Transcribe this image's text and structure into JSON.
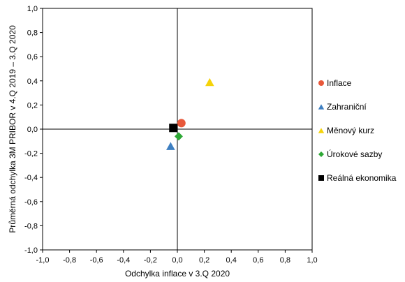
{
  "chart_data": {
    "type": "scatter",
    "title": "",
    "xlabel": "Odchylka inflace v 3.Q 2020",
    "ylabel": "Průměrná odchylka 3M PRIBOR v 4.Q 2019 – 3.Q 2020",
    "xlim": [
      -1.0,
      1.0
    ],
    "ylim": [
      -1.0,
      1.0
    ],
    "x_ticks": [
      "-1,0",
      "-0,8",
      "-0,6",
      "-0,4",
      "-0,2",
      "0,0",
      "0,2",
      "0,4",
      "0,6",
      "0,8",
      "1,0"
    ],
    "y_ticks": [
      "1,0",
      "0,8",
      "0,6",
      "0,4",
      "0,2",
      "0,0",
      "-0,2",
      "-0,4",
      "-0,6",
      "-0,8",
      "-1,0"
    ],
    "grid": false,
    "legend_position": "right",
    "series": [
      {
        "name": "Inflace",
        "marker": "circle",
        "color": "#E8583A",
        "x": 0.03,
        "y": 0.05
      },
      {
        "name": "Zahraniční",
        "marker": "triangle",
        "color": "#3E7FC1",
        "x": -0.05,
        "y": -0.14
      },
      {
        "name": "Měnový kurz",
        "marker": "triangle",
        "color": "#F5D30A",
        "x": 0.24,
        "y": 0.39
      },
      {
        "name": "Úrokové sazby",
        "marker": "diamond",
        "color": "#2EA836",
        "x": 0.01,
        "y": -0.06
      },
      {
        "name": "Reálná ekonomika",
        "marker": "square",
        "color": "#000000",
        "x": -0.03,
        "y": 0.01
      }
    ]
  }
}
